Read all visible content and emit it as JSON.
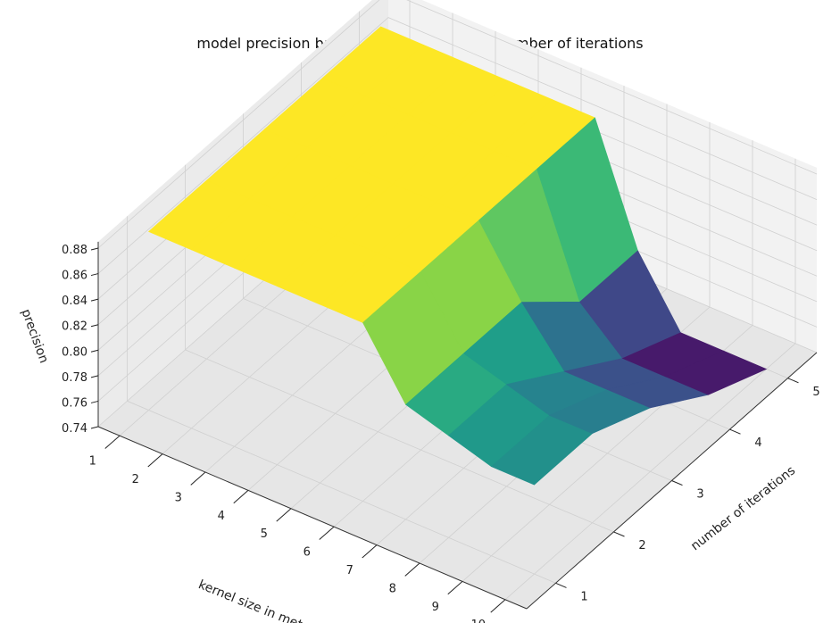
{
  "chart_data": {
    "type": "surface3d",
    "title": "model precision based on kernel size and number of iterations",
    "xlabel": "kernel size in meters",
    "ylabel": "number of iterations",
    "zlabel": "precision",
    "x_ticks": [
      "1",
      "2",
      "3",
      "4",
      "5",
      "6",
      "7",
      "8",
      "9",
      "10"
    ],
    "y_ticks": [
      "1",
      "2",
      "3",
      "4",
      "5"
    ],
    "z_ticks": [
      "0.74",
      "0.76",
      "0.78",
      "0.80",
      "0.82",
      "0.84",
      "0.86",
      "0.88"
    ],
    "zlim": [
      0.74,
      0.88
    ],
    "colormap": "viridis",
    "grid": true,
    "kernel_sizes": [
      1,
      2,
      3,
      4,
      5,
      6,
      7,
      8,
      9,
      10
    ],
    "iterations": [
      1,
      2,
      3,
      4,
      5
    ],
    "precision": [
      [
        0.88,
        0.88,
        0.88,
        0.88,
        0.88,
        0.88,
        0.83,
        0.82,
        0.81,
        0.81
      ],
      [
        0.88,
        0.88,
        0.88,
        0.88,
        0.88,
        0.88,
        0.83,
        0.82,
        0.81,
        0.81
      ],
      [
        0.88,
        0.88,
        0.88,
        0.88,
        0.88,
        0.88,
        0.83,
        0.79,
        0.79,
        0.79
      ],
      [
        0.88,
        0.88,
        0.88,
        0.88,
        0.88,
        0.88,
        0.79,
        0.76,
        0.76,
        0.76
      ],
      [
        0.88,
        0.88,
        0.88,
        0.88,
        0.88,
        0.88,
        0.79,
        0.74,
        0.74,
        0.74
      ]
    ]
  }
}
